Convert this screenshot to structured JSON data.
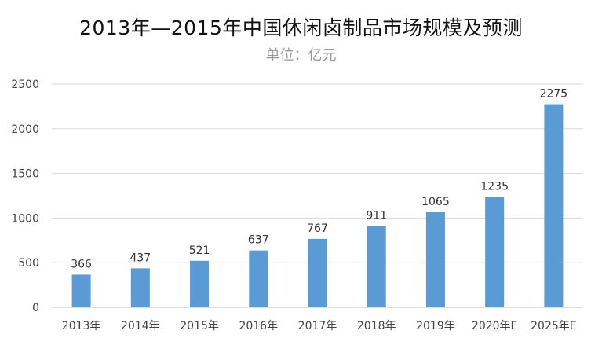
{
  "chart_data": {
    "type": "bar",
    "title": "2013年—2015年中国休闲卤制品市场规模及预测",
    "subtitle": "单位：亿元",
    "categories": [
      "2013年",
      "2014年",
      "2015年",
      "2016年",
      "2017年",
      "2018年",
      "2019年",
      "2020年E",
      "2025年E"
    ],
    "values": [
      366,
      437,
      521,
      637,
      767,
      911,
      1065,
      1235,
      2275
    ],
    "ylim": [
      0,
      2500
    ],
    "yticks": [
      0,
      500,
      1000,
      1500,
      2000,
      2500
    ],
    "grid": true,
    "legend": "none",
    "colors": {
      "bar": "#5b9bd5",
      "grid": "#d9d9d9",
      "axis": "#bfbfbf"
    }
  }
}
